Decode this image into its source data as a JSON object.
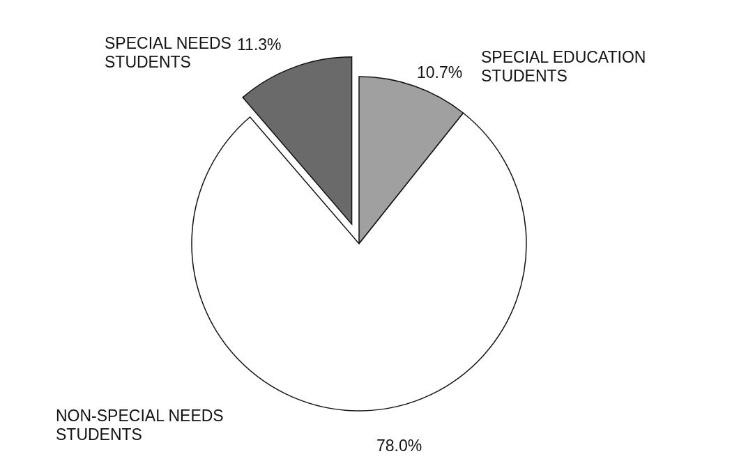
{
  "chart_data": {
    "type": "pie",
    "categories": [
      "SPECIAL EDUCATION STUDENTS",
      "NON-SPECIAL NEEDS STUDENTS",
      "SPECIAL NEEDS STUDENTS"
    ],
    "values": [
      10.7,
      78.0,
      11.3
    ],
    "value_labels": [
      "10.7%",
      "78.0%",
      "11.3%"
    ],
    "colors": [
      "#a0a0a0",
      "#ffffff",
      "#6a6a6a"
    ]
  }
}
